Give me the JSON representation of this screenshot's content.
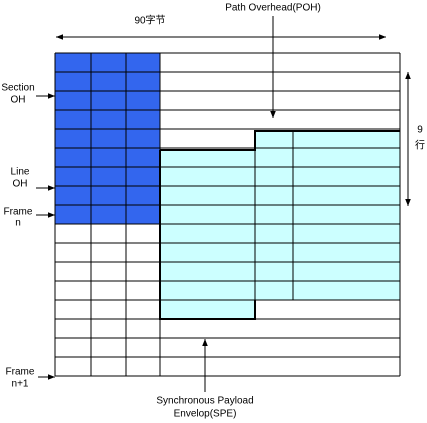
{
  "top_label": "90字节",
  "poh_label": "Path Overhead(POH)",
  "rows_label": [
    "9",
    "行"
  ],
  "left_labels": {
    "section_oh": [
      "Section",
      "OH"
    ],
    "line_oh": [
      "Line",
      "OH"
    ],
    "frame_n": [
      "Frame",
      "n"
    ],
    "frame_n1": [
      "Frame",
      "n+1"
    ]
  },
  "spe_label": [
    "Synchronous Payload",
    "Envelop(SPE)"
  ]
}
